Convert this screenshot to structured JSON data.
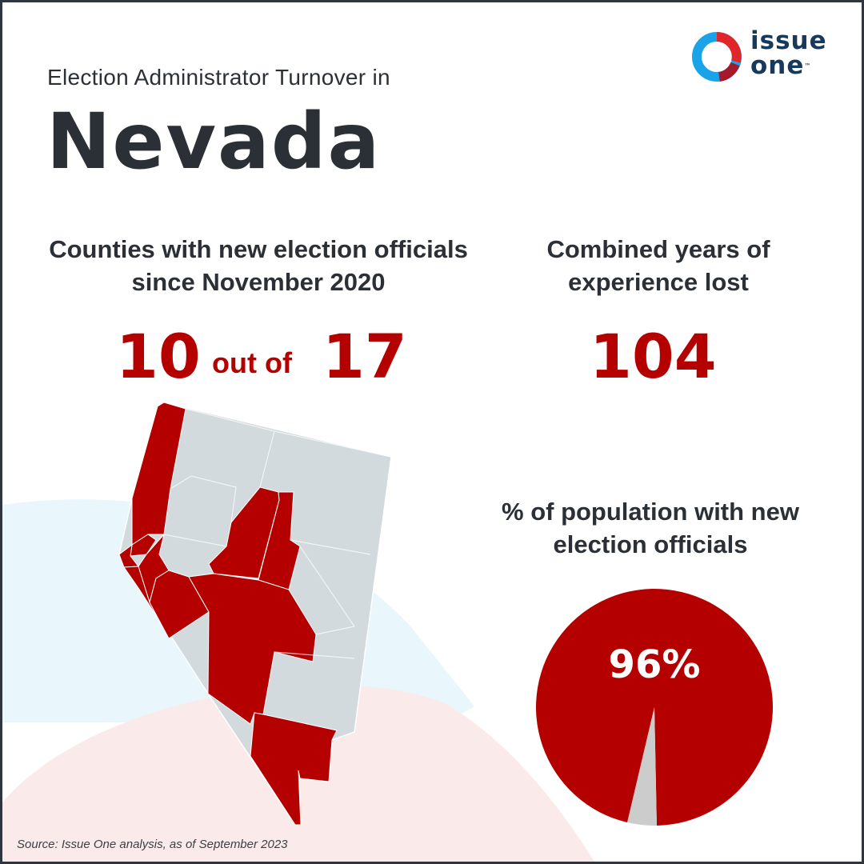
{
  "header": {
    "subtitle": "Election Administrator Turnover in",
    "title": "Nevada"
  },
  "logo": {
    "line1": "issue",
    "line2": "one",
    "trademark": "™"
  },
  "stats": {
    "counties_heading": "Counties with new election officials since November 2020",
    "counties_count": "10",
    "counties_connector": "out of",
    "counties_total": "17",
    "years_heading": "Combined years of experience lost",
    "years_value": "104",
    "population_heading": "% of population with new election officials"
  },
  "chart_data": [
    {
      "type": "pie",
      "slices": [
        {
          "label": "96%",
          "value": 96,
          "color": "#b50000"
        },
        {
          "value": 4,
          "color": "#cccccc"
        }
      ]
    }
  ],
  "map": {
    "counties_new_officials": 10,
    "counties_total": 17,
    "colors": {
      "new_officials": "#b50000",
      "no_change": "#d3dadd",
      "border": "#ffffff"
    }
  },
  "colors": {
    "accent_red": "#b50000",
    "text_dark": "#2b2f36",
    "logo_navy": "#16395c",
    "logo_blue": "#1aa3e8",
    "logo_red": "#e0262b"
  },
  "footer": {
    "source": "Source: Issue One analysis, as of September 2023"
  }
}
